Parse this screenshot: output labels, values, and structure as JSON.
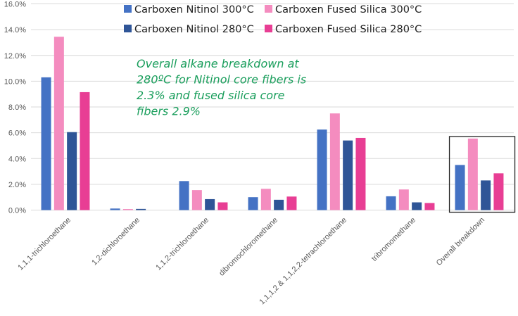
{
  "chart_data": {
    "type": "bar",
    "title": "",
    "xlabel": "",
    "ylabel": "",
    "ylim": [
      0,
      16
    ],
    "y_tick_step": 2,
    "y_tick_labels": [
      "0.0%",
      "2.0%",
      "4.0%",
      "6.0%",
      "8.0%",
      "10.0%",
      "12.0%",
      "14.0%",
      "16.0%"
    ],
    "grid": true,
    "legend_placement": "top",
    "categories": [
      "1,1,1-trichloroethane",
      "1,2-dichloroethane",
      "1,1,2-trichloroethane",
      "dibromochloromethane",
      "1,1,1,2 & 1,1,2,2-tetrachloroethane",
      "tribromomethane",
      "Overall breakdown"
    ],
    "series": [
      {
        "name": "Carboxen Nitinol 300°C",
        "color": "#4472C4",
        "values": [
          10.3,
          0.12,
          2.25,
          1.0,
          6.25,
          1.07,
          3.5
        ]
      },
      {
        "name": "Carboxen Fused Silica 300°C",
        "color": "#F48CBF",
        "values": [
          13.45,
          0.08,
          1.55,
          1.65,
          7.5,
          1.6,
          5.55
        ]
      },
      {
        "name": "Carboxen Nitinol 280°C",
        "color": "#2F5597",
        "values": [
          6.05,
          0.09,
          0.85,
          0.8,
          5.4,
          0.6,
          2.3
        ]
      },
      {
        "name": "Carboxen Fused Silica 280°C",
        "color": "#E83E94",
        "values": [
          9.15,
          0,
          0.6,
          1.05,
          5.6,
          0.55,
          2.85
        ]
      }
    ],
    "highlighted_category": "Overall breakdown",
    "annotation": [
      "Overall alkane breakdown at",
      "280ºC for Nitinol core fibers is",
      "2.3% and fused silica core",
      "fibers 2.9%"
    ]
  }
}
